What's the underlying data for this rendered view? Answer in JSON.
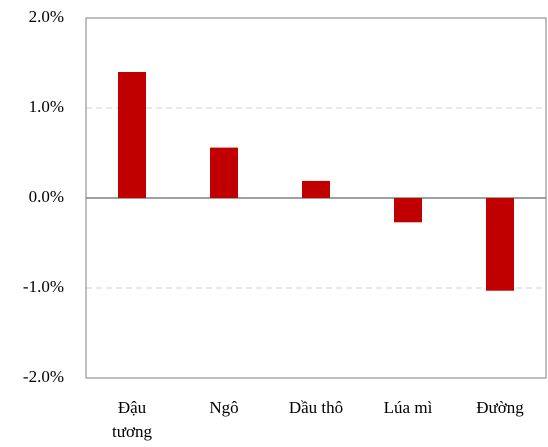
{
  "chart_data": {
    "type": "bar",
    "categories": [
      "Đậu tương",
      "Ngô",
      "Dầu thô",
      "Lúa mì",
      "Đường"
    ],
    "values": [
      1.4,
      0.56,
      0.19,
      -0.27,
      -1.03
    ],
    "color": "#c00000",
    "ylim": [
      -2,
      2
    ],
    "yticks": [
      {
        "value": -2,
        "label": "-2.0%"
      },
      {
        "value": -1,
        "label": "-1.0%"
      },
      {
        "value": 0,
        "label": "0.0%"
      },
      {
        "value": 1,
        "label": "1.0%"
      },
      {
        "value": 2,
        "label": "2.0%"
      }
    ],
    "grid": true
  }
}
